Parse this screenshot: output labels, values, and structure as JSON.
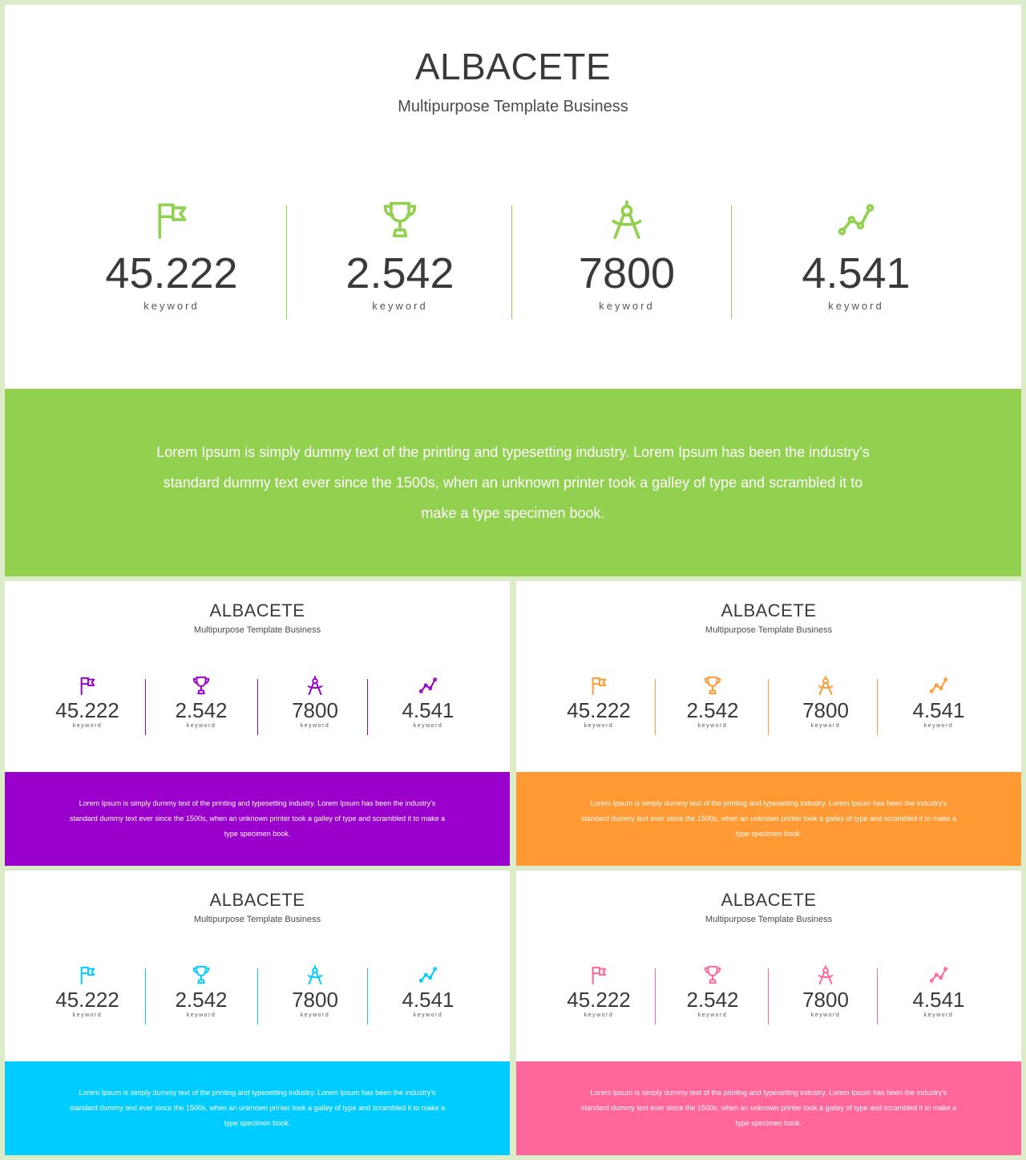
{
  "slides": [
    {
      "id": "main",
      "title": "ALBACETE",
      "subtitle": "Multipurpose Template Business",
      "accent": "#92d050",
      "stats": [
        {
          "icon": "flag-icon",
          "value": "45.222",
          "label": "keyword"
        },
        {
          "icon": "trophy-icon",
          "value": "2.542",
          "label": "keyword"
        },
        {
          "icon": "compass-icon",
          "value": "7800",
          "label": "keyword"
        },
        {
          "icon": "line-chart-icon",
          "value": "4.541",
          "label": "keyword"
        }
      ],
      "body": "Lorem Ipsum is simply dummy text of the printing and typesetting industry. Lorem Ipsum has been the industry's standard dummy text ever since the 1500s, when an unknown printer took a galley of type and scrambled it to make a type specimen book."
    },
    {
      "id": "s1",
      "title": "ALBACETE",
      "subtitle": "Multipurpose Template Business",
      "accent": "#9900cc",
      "stats": [
        {
          "icon": "flag-icon",
          "value": "45.222",
          "label": "keyword"
        },
        {
          "icon": "trophy-icon",
          "value": "2.542",
          "label": "keyword"
        },
        {
          "icon": "compass-icon",
          "value": "7800",
          "label": "keyword"
        },
        {
          "icon": "line-chart-icon",
          "value": "4.541",
          "label": "keyword"
        }
      ],
      "body": "Lorem Ipsum is simply dummy text of the printing and typesetting industry. Lorem Ipsum has been the industry's standard dummy text ever since the 1500s, when an unknown printer took a galley of type and scrambled it to make a type specimen book."
    },
    {
      "id": "s2",
      "title": "ALBACETE",
      "subtitle": "Multipurpose Template Business",
      "accent": "#ff9933",
      "stats": [
        {
          "icon": "flag-icon",
          "value": "45.222",
          "label": "keyword"
        },
        {
          "icon": "trophy-icon",
          "value": "2.542",
          "label": "keyword"
        },
        {
          "icon": "compass-icon",
          "value": "7800",
          "label": "keyword"
        },
        {
          "icon": "line-chart-icon",
          "value": "4.541",
          "label": "keyword"
        }
      ],
      "body": "Lorem Ipsum is simply dummy text of the printing and typesetting industry. Lorem Ipsum has been the industry's standard dummy text ever since the 1500s, when an unknown printer took a galley of type and scrambled it to make a type specimen book."
    },
    {
      "id": "s3",
      "title": "ALBACETE",
      "subtitle": "Multipurpose Template Business",
      "accent": "#00ccff",
      "stats": [
        {
          "icon": "flag-icon",
          "value": "45.222",
          "label": "keyword"
        },
        {
          "icon": "trophy-icon",
          "value": "2.542",
          "label": "keyword"
        },
        {
          "icon": "compass-icon",
          "value": "7800",
          "label": "keyword"
        },
        {
          "icon": "line-chart-icon",
          "value": "4.541",
          "label": "keyword"
        }
      ],
      "body": "Lorem Ipsum is simply dummy text of the printing and typesetting industry. Lorem Ipsum has been the industry's standard dummy text ever since the 1500s, when an unknown printer took a galley of type and scrambled it to make a type specimen book."
    },
    {
      "id": "s4",
      "title": "ALBACETE",
      "subtitle": "Multipurpose Template Business",
      "accent": "#ff6699",
      "stats": [
        {
          "icon": "flag-icon",
          "value": "45.222",
          "label": "keyword"
        },
        {
          "icon": "trophy-icon",
          "value": "2.542",
          "label": "keyword"
        },
        {
          "icon": "compass-icon",
          "value": "7800",
          "label": "keyword"
        },
        {
          "icon": "line-chart-icon",
          "value": "4.541",
          "label": "keyword"
        }
      ],
      "body": "Lorem Ipsum is simply dummy text of the printing and typesetting industry. Lorem Ipsum has been the industry's standard dummy text ever since the 1500s, when an unknown printer took a galley of type and scrambled it to make a type specimen book."
    }
  ]
}
